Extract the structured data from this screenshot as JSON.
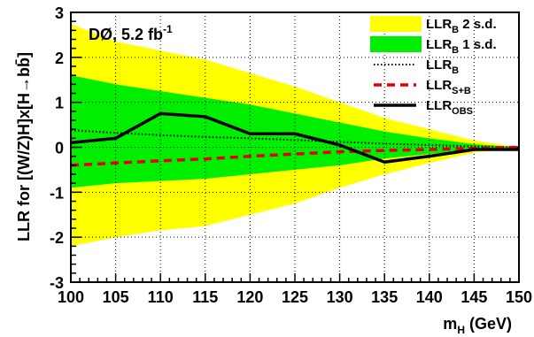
{
  "chart_data": {
    "type": "line",
    "annotation": {
      "prefix": "DØ, 5.2 fb",
      "sup": "-1"
    },
    "xlabel": {
      "main": "m",
      "sub": "H",
      "rest": " (GeV)"
    },
    "ylabel": "LLR for [(W/Z)H]x[H→bb̄]",
    "xlim": [
      100,
      150
    ],
    "ylim": [
      -3,
      3
    ],
    "xticks": [
      100,
      105,
      110,
      115,
      120,
      125,
      130,
      135,
      140,
      145,
      150
    ],
    "yticks": [
      -3,
      -2,
      -1,
      0,
      1,
      2,
      3
    ],
    "grid": true,
    "legend_position": "top-right",
    "x": [
      100,
      105,
      110,
      115,
      120,
      125,
      130,
      135,
      140,
      145,
      150
    ],
    "bands": [
      {
        "main": "LLR",
        "sub": "B",
        "suffix": " 2 s.d.",
        "color": "#ffff00",
        "upper": [
          2.75,
          2.35,
          2.15,
          1.95,
          1.65,
          1.35,
          1.0,
          0.65,
          0.4,
          0.15,
          0.0
        ],
        "lower": [
          -2.2,
          -2.0,
          -1.85,
          -1.75,
          -1.5,
          -1.25,
          -0.9,
          -0.6,
          -0.35,
          -0.12,
          0.0
        ]
      },
      {
        "main": "LLR",
        "sub": "B",
        "suffix": " 1 s.d.",
        "color": "#00ee00",
        "upper": [
          1.6,
          1.4,
          1.25,
          1.1,
          0.95,
          0.75,
          0.55,
          0.35,
          0.2,
          0.07,
          0.0
        ],
        "lower": [
          -0.9,
          -0.8,
          -0.75,
          -0.7,
          -0.6,
          -0.5,
          -0.4,
          -0.25,
          -0.15,
          -0.05,
          0.0
        ]
      }
    ],
    "series": [
      {
        "main": "LLR",
        "sub": "B",
        "color": "#000000",
        "style": "dotted",
        "values": [
          0.38,
          0.32,
          0.27,
          0.23,
          0.2,
          0.16,
          0.12,
          0.08,
          0.05,
          0.02,
          0.0
        ]
      },
      {
        "main": "LLR",
        "sub": "S+B",
        "color": "#e00000",
        "style": "dashed",
        "values": [
          -0.4,
          -0.35,
          -0.3,
          -0.26,
          -0.2,
          -0.15,
          -0.1,
          -0.07,
          -0.05,
          -0.02,
          0.0
        ]
      },
      {
        "main": "LLR",
        "sub": "OBS",
        "color": "#000000",
        "style": "solid",
        "values": [
          0.1,
          0.2,
          0.75,
          0.68,
          0.3,
          0.3,
          0.05,
          -0.33,
          -0.2,
          -0.05,
          -0.05
        ]
      }
    ]
  }
}
